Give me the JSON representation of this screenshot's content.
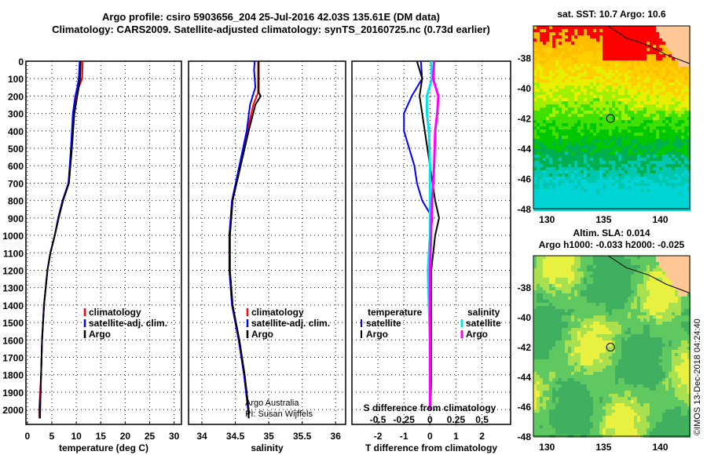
{
  "title": {
    "line1": "Argo profile: csiro 5903656_204 25-Jul-2016 42.03S 135.61E (DM data)",
    "line2": "Climatology: CARS2009. Satellite-adjusted climatology: synTS_20160725.nc (0.73d earlier)"
  },
  "credit": {
    "line1": "Argo Australia",
    "line2": "PI: Susan Wijffels"
  },
  "watermark": "©IMOS 13-Dec-2018 04:24:40",
  "colors": {
    "climatology": "#ff0000",
    "satellite": "#0000ff",
    "argo": "#000000",
    "sal_satellite": "#00e5e5",
    "sal_argo": "#ff00ff"
  },
  "chart_data": [
    {
      "type": "line",
      "name": "temperature",
      "xlabel": "temperature (deg C)",
      "ylabel": "depth",
      "xlim": [
        -0.3,
        31.5
      ],
      "ylim": [
        2085,
        0
      ],
      "xticks": [
        0,
        5,
        10,
        15,
        20,
        25,
        30
      ],
      "yticks": [
        0,
        100,
        200,
        300,
        400,
        500,
        600,
        700,
        800,
        900,
        1000,
        1100,
        1200,
        1300,
        1400,
        1500,
        1600,
        1700,
        1800,
        1900,
        2000
      ],
      "legend": [
        "climatology",
        "satellite-adj. clim.",
        "Argo"
      ],
      "series": [
        {
          "name": "climatology",
          "color": "#ff0000",
          "depth": [
            0,
            100,
            150,
            200,
            300,
            500,
            700,
            800,
            900,
            1000,
            1100,
            1200,
            1400,
            1600,
            1800,
            2000,
            2050
          ],
          "values": [
            11.3,
            11.2,
            10.5,
            10.1,
            9.6,
            9.0,
            8.4,
            7.2,
            6.3,
            5.6,
            4.7,
            4.1,
            3.4,
            3.0,
            2.8,
            2.4,
            2.4
          ]
        },
        {
          "name": "satellite-adj. clim.",
          "color": "#0000ff",
          "depth": [
            0,
            100,
            150,
            200,
            300,
            500,
            700,
            800,
            900,
            1000,
            1100,
            1200,
            1400,
            1600,
            1800,
            2000,
            2050
          ],
          "values": [
            10.7,
            10.5,
            10.2,
            9.8,
            9.3,
            8.9,
            8.4,
            7.2,
            6.3,
            5.6,
            4.7,
            4.1,
            3.4,
            3.0,
            2.8,
            2.6,
            2.6
          ]
        },
        {
          "name": "Argo",
          "color": "#000000",
          "depth": [
            0,
            100,
            150,
            200,
            300,
            500,
            700,
            800,
            900,
            1000,
            1100,
            1200,
            1400,
            1600,
            1800,
            2000,
            2050
          ],
          "values": [
            10.9,
            10.8,
            10.5,
            10.2,
            9.6,
            9.1,
            8.5,
            7.3,
            6.4,
            5.6,
            4.7,
            4.1,
            3.4,
            3.0,
            2.8,
            2.6,
            2.6
          ]
        }
      ]
    },
    {
      "type": "line",
      "name": "salinity",
      "xlabel": "salinity",
      "xlim": [
        33.8,
        36.15
      ],
      "ylim": [
        2085,
        0
      ],
      "xticks": [
        34,
        34.5,
        35,
        35.5,
        36
      ],
      "xticklabels": [
        "34",
        "34.5",
        "35",
        "35.5",
        "36"
      ],
      "legend": [
        "climatology",
        "satellite-adj. clim.",
        "Argo"
      ],
      "series": [
        {
          "name": "climatology",
          "color": "#ff0000",
          "depth": [
            0,
            180,
            250,
            400,
            600,
            800,
            1000,
            1200,
            1400,
            1600,
            1800,
            2000,
            2050
          ],
          "values": [
            34.84,
            34.84,
            34.77,
            34.68,
            34.57,
            34.45,
            34.41,
            34.41,
            34.45,
            34.55,
            34.63,
            34.69,
            34.7
          ]
        },
        {
          "name": "satellite-adj. clim.",
          "color": "#0000ff",
          "depth": [
            0,
            50,
            150,
            250,
            400,
            600,
            800,
            1000,
            1200,
            1400,
            1600,
            1800,
            2000,
            2050
          ],
          "values": [
            34.79,
            34.78,
            34.8,
            34.72,
            34.67,
            34.56,
            34.45,
            34.41,
            34.41,
            34.45,
            34.55,
            34.63,
            34.69,
            34.7
          ]
        },
        {
          "name": "Argo",
          "color": "#000000",
          "depth": [
            0,
            180,
            200,
            250,
            400,
            600,
            800,
            1000,
            1200,
            1400,
            1600,
            1800,
            2000,
            2050
          ],
          "values": [
            34.85,
            34.85,
            34.88,
            34.8,
            34.7,
            34.58,
            34.46,
            34.42,
            34.42,
            34.46,
            34.56,
            34.64,
            34.7,
            34.7
          ]
        }
      ]
    },
    {
      "type": "line",
      "name": "difference",
      "xlabel": "T difference from climatology",
      "x2label": "S difference from climatology",
      "xlim": [
        -3,
        3.1
      ],
      "ylim": [
        2085,
        0
      ],
      "xticks": [
        -2,
        -1,
        0,
        1,
        2
      ],
      "x2ticks": [
        -0.5,
        -0.25,
        0,
        0.25,
        0.5
      ],
      "x2ticklabels": [
        "-0.5",
        "-0.25",
        "0",
        "0.25",
        "0.5"
      ],
      "legend": {
        "temperature_title": "temperature",
        "salinity_title": "salinity",
        "items": [
          "satellite",
          "Argo"
        ]
      },
      "series": [
        {
          "name": "T satellite",
          "color": "#0000ff",
          "scale": 1,
          "depth": [
            0,
            100,
            200,
            300,
            400,
            500,
            600,
            700,
            800,
            900,
            1000,
            1200,
            1400,
            1600,
            1800,
            2000
          ],
          "values": [
            -0.35,
            -0.3,
            -0.7,
            -1.0,
            -1.0,
            -0.8,
            -0.6,
            -0.5,
            -0.3,
            0.1,
            0.0,
            0.0,
            0.0,
            0.0,
            0.0,
            0.0
          ]
        },
        {
          "name": "T Argo",
          "color": "#000000",
          "scale": 1,
          "depth": [
            0,
            100,
            200,
            300,
            400,
            500,
            600,
            700,
            800,
            900,
            1000,
            1200,
            1400,
            1600,
            1800,
            2000
          ],
          "values": [
            -0.5,
            -0.3,
            -0.4,
            -0.3,
            -0.2,
            -0.1,
            0.0,
            0.1,
            0.2,
            0.35,
            0.2,
            0.05,
            0.05,
            0.05,
            0.05,
            0.02
          ]
        },
        {
          "name": "S satellite",
          "color": "#00e5e5",
          "scale": 4,
          "depth": [
            0,
            100,
            200,
            300,
            400,
            600,
            800,
            1000,
            1200,
            1400,
            1600,
            1800,
            2000
          ],
          "values": [
            0.01,
            0.02,
            -0.03,
            -0.03,
            -0.01,
            0.0,
            0.0,
            0.0,
            -0.02,
            -0.01,
            0.0,
            0.0,
            0.0
          ]
        },
        {
          "name": "S Argo",
          "color": "#ff00ff",
          "scale": 4,
          "depth": [
            0,
            100,
            200,
            300,
            400,
            600,
            800,
            1000,
            1200,
            1400,
            1600,
            1800,
            2000
          ],
          "values": [
            0.04,
            0.03,
            0.08,
            0.07,
            0.05,
            0.04,
            0.02,
            0.01,
            0.0,
            0.0,
            0.0,
            0.0,
            0.0
          ]
        }
      ]
    },
    {
      "type": "heatmap",
      "name": "sst-map",
      "title": "sat. SST: 10.7 Argo: 10.6",
      "xlim": [
        128.8,
        142.6
      ],
      "ylim": [
        -48,
        -35.9
      ],
      "xticks": [
        130,
        135,
        140
      ],
      "yticks": [
        -38,
        -40,
        -42,
        -44,
        -46,
        -48
      ],
      "marker": {
        "lon": 135.61,
        "lat": -42.03
      }
    },
    {
      "type": "heatmap",
      "name": "sla-map",
      "title": "Altim. SLA: 0.014",
      "subtitle": "Argo h1000: -0.033 h2000: -0.025",
      "xlim": [
        128.8,
        142.6
      ],
      "ylim": [
        -48,
        -35.9
      ],
      "xticks": [
        130,
        135,
        140
      ],
      "yticks": [
        -38,
        -40,
        -42,
        -44,
        -46,
        -48
      ],
      "marker": {
        "lon": 135.61,
        "lat": -42.03
      }
    }
  ]
}
